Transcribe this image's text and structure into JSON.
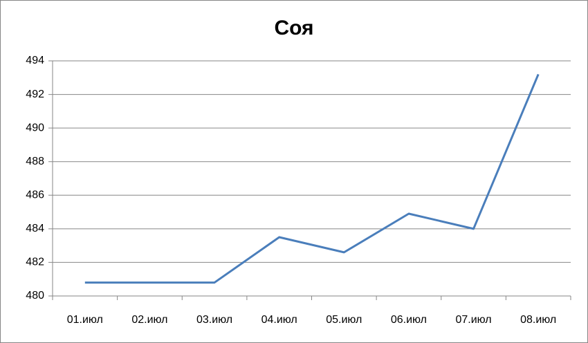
{
  "chart_data": {
    "type": "line",
    "title": "Соя",
    "categories": [
      "01.июл",
      "02.июл",
      "03.июл",
      "04.июл",
      "05.июл",
      "06.июл",
      "07.июл",
      "08.июл"
    ],
    "values": [
      480.8,
      480.8,
      480.8,
      483.5,
      482.6,
      484.9,
      484.0,
      493.2
    ],
    "color": "#4a7ebb",
    "ylim": [
      480,
      494
    ],
    "yticks": [
      480,
      482,
      484,
      486,
      488,
      490,
      492,
      494
    ],
    "grid": true
  }
}
